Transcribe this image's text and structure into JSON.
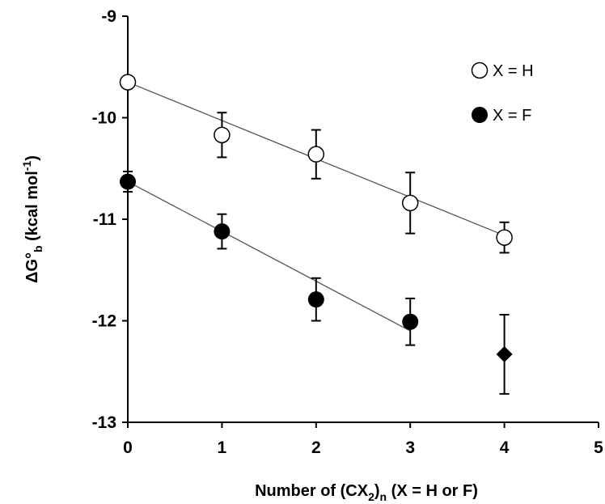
{
  "chart_data": {
    "type": "scatter",
    "xlim": [
      0,
      5
    ],
    "ylim": [
      -13,
      -9
    ],
    "x_ticks": [
      "0",
      "1",
      "2",
      "3",
      "4",
      "5"
    ],
    "y_ticks": [
      "-9",
      "-10",
      "-11",
      "-12",
      "-13"
    ],
    "xlabel": {
      "prefix": "Number of (CX",
      "sub1": "2",
      "mid": ")",
      "sub2": "n",
      "suffix": " (X = H or F)"
    },
    "ylabel": {
      "prefix": "ΔG°",
      "sub": "b",
      "mid": "  (kcal mol",
      "sup": "-1",
      "suffix": ")"
    },
    "grid": false,
    "legend_position": "top-right",
    "series": [
      {
        "name": "X = H",
        "marker": "circle-open",
        "color": "#000000",
        "points": [
          {
            "x": 0,
            "y": -9.65,
            "err": 0.0
          },
          {
            "x": 1,
            "y": -10.17,
            "err": 0.22
          },
          {
            "x": 2,
            "y": -10.36,
            "err": 0.24
          },
          {
            "x": 3,
            "y": -10.84,
            "err": 0.3
          },
          {
            "x": 4,
            "y": -11.18,
            "err": 0.15
          }
        ],
        "fit": {
          "x": [
            0,
            4
          ],
          "y": [
            -9.65,
            -11.16
          ]
        }
      },
      {
        "name": "X = F",
        "marker": "circle-filled",
        "color": "#000000",
        "points": [
          {
            "x": 0,
            "y": -10.63,
            "err": 0.1
          },
          {
            "x": 1,
            "y": -11.12,
            "err": 0.17
          },
          {
            "x": 2,
            "y": -11.79,
            "err": 0.21
          },
          {
            "x": 3,
            "y": -12.01,
            "err": 0.23
          }
        ],
        "fit": {
          "x": [
            0,
            3
          ],
          "y": [
            -10.63,
            -12.1
          ]
        }
      },
      {
        "name": "",
        "marker": "diamond-filled",
        "color": "#000000",
        "points": [
          {
            "x": 4,
            "y": -12.33,
            "err": 0.39
          }
        ]
      }
    ]
  }
}
